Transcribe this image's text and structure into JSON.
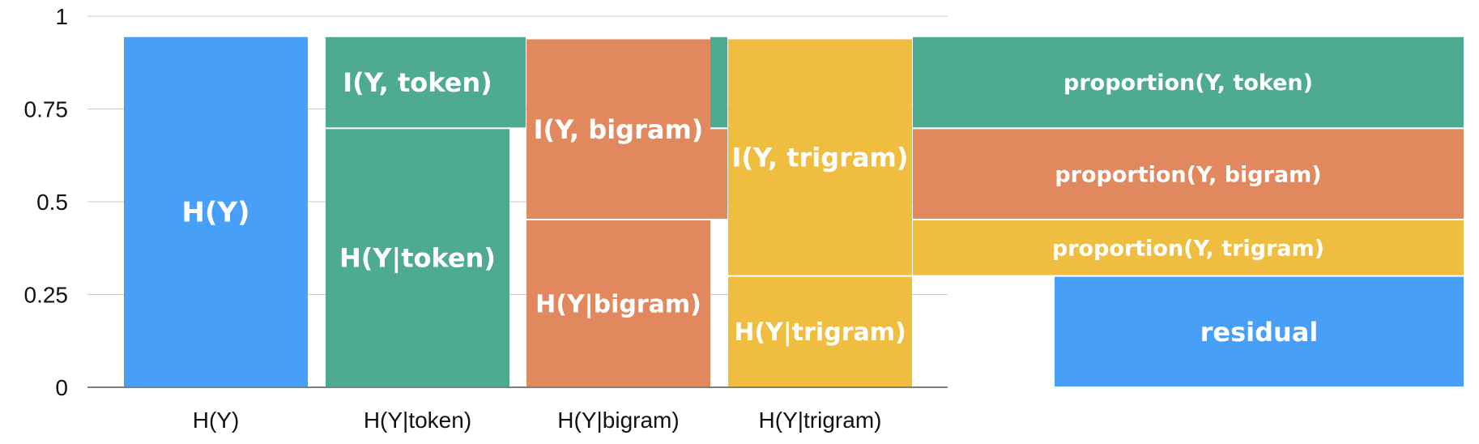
{
  "chart_data": {
    "type": "bar",
    "title": "",
    "xlabel": "",
    "ylabel": "",
    "ylim": [
      0,
      1
    ],
    "yticks": [
      {
        "value": 0,
        "label": "0"
      },
      {
        "value": 0.25,
        "label": "0.25"
      },
      {
        "value": 0.5,
        "label": "0.5"
      },
      {
        "value": 0.75,
        "label": "0.75"
      },
      {
        "value": 1,
        "label": "1"
      }
    ],
    "grid": true,
    "colors": {
      "blue": "#479ff8",
      "green": "#4eaa90",
      "orange": "#e2885f",
      "yellow": "#efbe40"
    },
    "categories": [
      "H(Y)",
      "H(Y|token)",
      "H(Y|bigram)",
      "H(Y|trigram)",
      ""
    ],
    "bars": [
      {
        "category": "H(Y)",
        "segments": [
          {
            "label": "H(Y)",
            "from": 0,
            "to": 0.946,
            "color": "blue"
          }
        ]
      },
      {
        "category": "H(Y|token)",
        "segments": [
          {
            "label": "H(Y|token)",
            "from": 0,
            "to": 0.698,
            "color": "green"
          },
          {
            "label": "I(Y, token)",
            "from": 0.698,
            "to": 0.946,
            "color": "green"
          }
        ],
        "side_segments": [
          {
            "from": 0.698,
            "to": 0.946,
            "color": "green"
          }
        ]
      },
      {
        "category": "H(Y|bigram)",
        "segments": [
          {
            "label": "H(Y|bigram)",
            "from": 0,
            "to": 0.452,
            "color": "orange"
          },
          {
            "label": "I(Y, bigram)",
            "from": 0.452,
            "to": 0.94,
            "color": "orange"
          }
        ],
        "side_segments": [
          {
            "from": 0.698,
            "to": 0.946,
            "color": "green"
          },
          {
            "from": 0.452,
            "to": 0.698,
            "color": "orange"
          }
        ]
      },
      {
        "category": "H(Y|trigram)",
        "segments": [
          {
            "label": "H(Y|trigram)",
            "from": 0,
            "to": 0.3,
            "color": "yellow"
          },
          {
            "label": "I(Y, trigram)",
            "from": 0.3,
            "to": 0.94,
            "color": "yellow"
          }
        ]
      },
      {
        "category": "",
        "segments": [
          {
            "label": "residual",
            "from": 0,
            "to": 0.3,
            "color": "blue",
            "partial": true
          },
          {
            "label": "proportion(Y, trigram)",
            "from": 0.3,
            "to": 0.452,
            "color": "yellow"
          },
          {
            "label": "proportion(Y, bigram)",
            "from": 0.452,
            "to": 0.698,
            "color": "orange"
          },
          {
            "label": "proportion(Y, token)",
            "from": 0.698,
            "to": 0.946,
            "color": "green"
          }
        ]
      }
    ]
  }
}
